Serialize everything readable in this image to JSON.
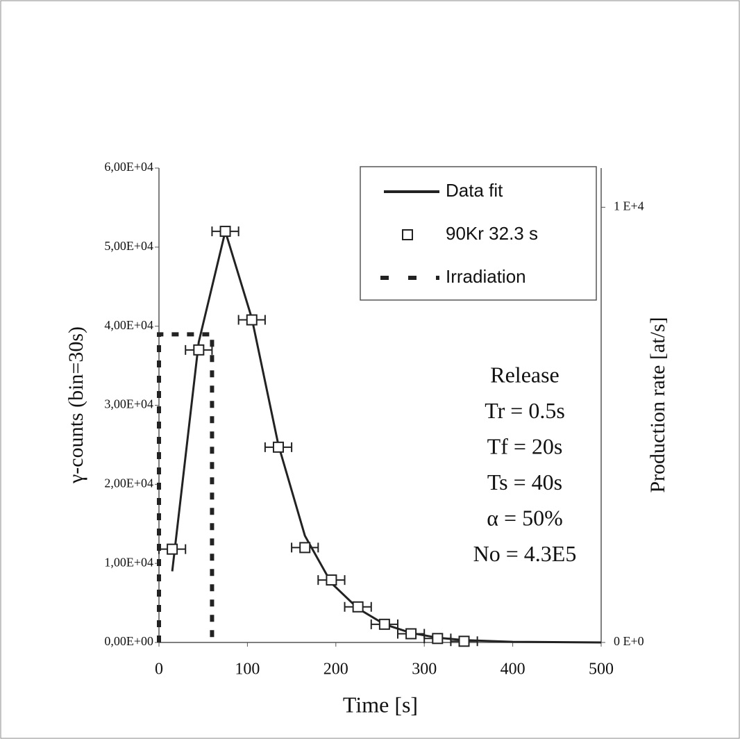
{
  "chart_data": {
    "type": "line",
    "xlabel": "Time  [s]",
    "ylabel": "γ-counts (bin=30s)",
    "y2label": "Production rate [at/s]",
    "xlim": [
      0,
      500
    ],
    "xticks": [
      0,
      100,
      200,
      300,
      400,
      500
    ],
    "ylim": [
      0,
      60000
    ],
    "yticks": [
      {
        "value": 0,
        "label": "0,00E+00"
      },
      {
        "value": 10000,
        "label": "1,00E+04"
      },
      {
        "value": 20000,
        "label": "2,00E+04"
      },
      {
        "value": 30000,
        "label": "3,00E+04"
      },
      {
        "value": 40000,
        "label": "4,00E+04"
      },
      {
        "value": 50000,
        "label": "5,00E+04"
      },
      {
        "value": 60000,
        "label": "6,00E+04"
      }
    ],
    "y2lim": [
      0,
      10900
    ],
    "y2ticks": [
      {
        "value": 0,
        "label": "0 E+0"
      },
      {
        "value": 10000,
        "label": "1 E+4"
      }
    ],
    "series": [
      {
        "name": "Data fit",
        "style": "line",
        "color": "#222222",
        "x": [
          15,
          45,
          75,
          105,
          135,
          165,
          195,
          225,
          255,
          285,
          315,
          345,
          400,
          500
        ],
        "values": [
          9000,
          38000,
          52000,
          41000,
          25000,
          13500,
          7500,
          4300,
          2300,
          1200,
          600,
          300,
          80,
          0
        ]
      },
      {
        "name": "90Kr 32.3 s",
        "style": "marker",
        "color": "#222222",
        "x_error": 15,
        "x": [
          15,
          45,
          75,
          105,
          135,
          165,
          195,
          225,
          255,
          285,
          315,
          345
        ],
        "values": [
          11800,
          37000,
          52000,
          40800,
          24700,
          12000,
          7900,
          4500,
          2300,
          1100,
          500,
          150
        ]
      },
      {
        "name": "Irradiation",
        "style": "dashed",
        "color": "#222222",
        "axis": "y2",
        "x": [
          0,
          0,
          60,
          60
        ],
        "values": [
          0,
          7080,
          7080,
          0
        ]
      }
    ],
    "annotations": [
      "Release",
      "Tr = 0.5s",
      "Tf = 20s",
      "Ts = 40s",
      "α = 50%",
      "No = 4.3E5"
    ]
  }
}
